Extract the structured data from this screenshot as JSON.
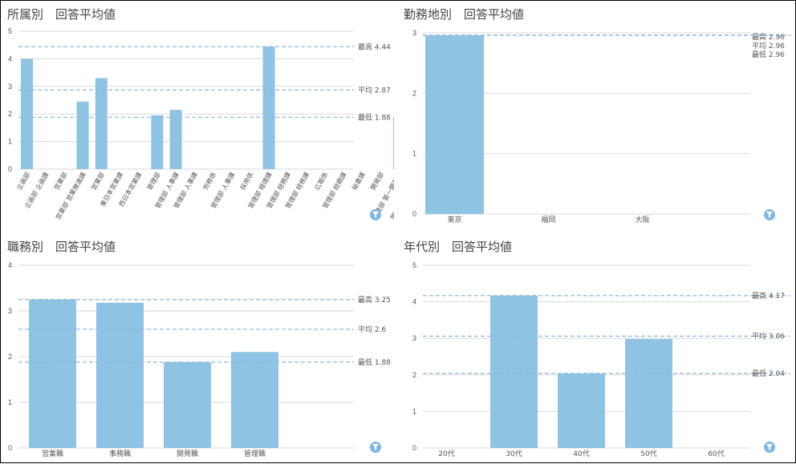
{
  "colors": {
    "bar": "#8fc3e4",
    "refline": "#8cb9dc",
    "grid": "#dadada",
    "text": "#555555",
    "filter": "#7fb7e2"
  },
  "icons": {
    "filter": "filter-funnel-icon"
  },
  "chart_data": [
    {
      "type": "bar",
      "title": "所属別　回答平均値",
      "categories": [
        "企画部",
        "企画部 企画課",
        "営業部",
        "営業部 営業推進課",
        "営業部",
        "東日本営業課",
        "西日本営業課",
        "管理部",
        "管理部 人事課",
        "管理部 人事課",
        "労務係",
        "管理部 人事課",
        "採用係",
        "管理部 経理課",
        "管理部 総務課",
        "管理部 総務課",
        "広報係",
        "管理部 総務課",
        "秘書課",
        "開発部",
        "開発部 第一開発課",
        "開発部 第二開発課"
      ],
      "values": [
        4.0,
        null,
        null,
        2.45,
        3.3,
        null,
        null,
        1.95,
        2.15,
        null,
        null,
        null,
        null,
        4.44,
        null,
        null,
        null,
        null,
        null,
        null,
        1.88,
        null
      ],
      "ylim": [
        0,
        5
      ],
      "yticks": [
        "0",
        "1",
        "2",
        "3",
        "4",
        "5"
      ],
      "reference_lines": [
        {
          "label": "最高 4.44",
          "value": 4.44
        },
        {
          "label": "平均 2.87",
          "value": 2.87
        },
        {
          "label": "最低 1.88",
          "value": 1.88
        }
      ],
      "grid": true
    },
    {
      "type": "bar",
      "title": "勤務地別　回答平均値",
      "categories": [
        "東京",
        "福岡",
        "大阪"
      ],
      "values": [
        2.96,
        null,
        null
      ],
      "ylim": [
        0,
        3
      ],
      "yticks": [
        "0",
        "1",
        "2",
        "3"
      ],
      "reference_lines": [
        {
          "label": "最高 2.96",
          "value": 2.96
        },
        {
          "label": "平均 2.96",
          "value": 2.96
        },
        {
          "label": "最低 2.96",
          "value": 2.96
        }
      ],
      "grid": true
    },
    {
      "type": "bar",
      "title": "職務別　回答平均値",
      "categories": [
        "営業職",
        "事務職",
        "開発職",
        "管理職"
      ],
      "values": [
        3.25,
        3.18,
        1.88,
        2.1
      ],
      "ylim": [
        0,
        4
      ],
      "yticks": [
        "0",
        "1",
        "2",
        "3",
        "4"
      ],
      "reference_lines": [
        {
          "label": "最高 3.25",
          "value": 3.25
        },
        {
          "label": "平均 2.6",
          "value": 2.6
        },
        {
          "label": "最低 1.88",
          "value": 1.88
        }
      ],
      "grid": true
    },
    {
      "type": "bar",
      "title": "年代別　回答平均値",
      "categories": [
        "20代",
        "30代",
        "40代",
        "50代",
        "60代"
      ],
      "values": [
        null,
        4.17,
        2.04,
        2.98,
        null
      ],
      "ylim": [
        0,
        5
      ],
      "yticks": [
        "0",
        "1",
        "2",
        "3",
        "4",
        "5"
      ],
      "reference_lines": [
        {
          "label": "最高 4.17",
          "value": 4.17
        },
        {
          "label": "平均 3.06",
          "value": 3.06
        },
        {
          "label": "最低 2.04",
          "value": 2.04
        }
      ],
      "grid": true
    }
  ]
}
